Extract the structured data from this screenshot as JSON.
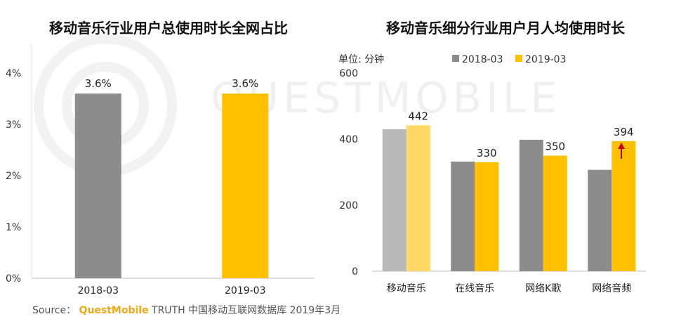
{
  "colors": {
    "gray": "#8c8c8c",
    "yellow": "#ffc000",
    "light_gray": "#b8b8b8",
    "light_yellow": "#ffd966",
    "arrow": "#cc0000"
  },
  "watermark": "QUESTMOBILE",
  "source": {
    "label": "Source：",
    "brand": "QuestMobile",
    "text": "TRUTH 中国移动互联网数据库 2019年3月"
  },
  "chart_data": [
    {
      "type": "bar",
      "title": "移动音乐行业用户总使用时长全网占比",
      "categories": [
        "2018-03",
        "2019-03"
      ],
      "values": [
        3.6,
        3.6
      ],
      "value_labels": [
        "3.6%",
        "3.6%"
      ],
      "bar_colors": [
        "#8c8c8c",
        "#ffc000"
      ],
      "ylim": [
        0,
        4
      ],
      "yticks": [
        "0%",
        "1%",
        "2%",
        "3%",
        "4%"
      ],
      "grid": false
    },
    {
      "type": "bar",
      "title": "移动音乐细分行业用户月人均使用时长",
      "unit_label": "单位: 分钟",
      "categories": [
        "移动音乐",
        "在线音乐",
        "网络K歌",
        "网络音频"
      ],
      "series": [
        {
          "name": "2018-03",
          "values": [
            430,
            332,
            398,
            307
          ],
          "color": "#8c8c8c"
        },
        {
          "name": "2019-03",
          "values": [
            442,
            330,
            350,
            394
          ],
          "color": "#ffc000"
        }
      ],
      "data_labels_series2": [
        "442",
        "330",
        "350",
        "394"
      ],
      "ylim": [
        0,
        600
      ],
      "yticks": [
        "0",
        "200",
        "400",
        "600"
      ],
      "legend_position": "top",
      "grid": false,
      "annotation": "upward red arrow on 网络音频 2019-03 bar"
    }
  ]
}
